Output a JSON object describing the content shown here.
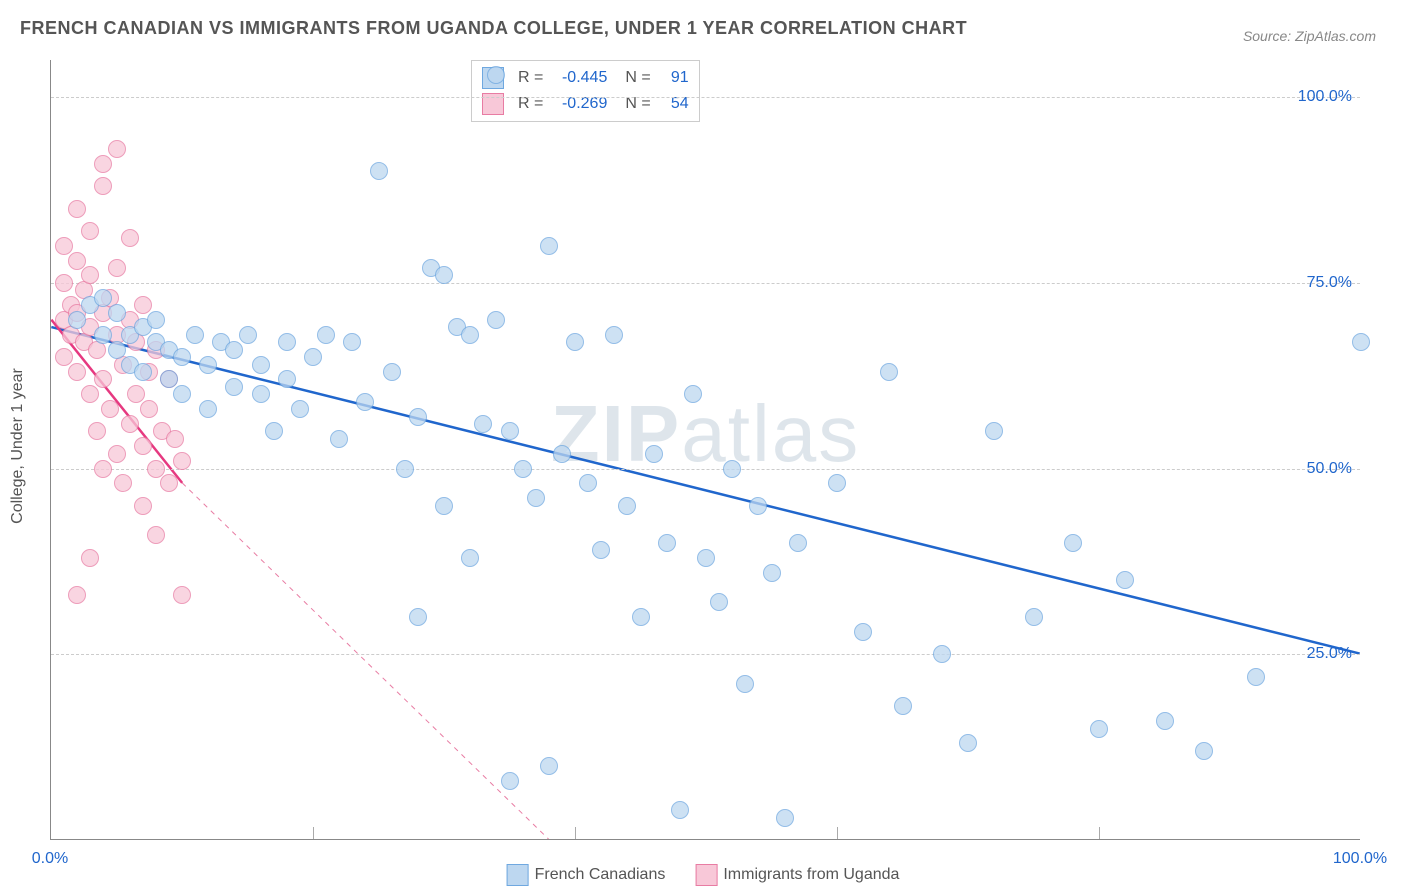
{
  "title": "FRENCH CANADIAN VS IMMIGRANTS FROM UGANDA COLLEGE, UNDER 1 YEAR CORRELATION CHART",
  "source_label": "Source:",
  "source_name": "ZipAtlas.com",
  "ylabel": "College, Under 1 year",
  "watermark_bold": "ZIP",
  "watermark_rest": "atlas",
  "chart": {
    "type": "scatter",
    "xlim": [
      0,
      100
    ],
    "ylim": [
      0,
      105
    ],
    "x_ticks": [
      0,
      100
    ],
    "x_tick_labels": [
      "0.0%",
      "100.0%"
    ],
    "x_minor_ticks": [
      20,
      40,
      60,
      80
    ],
    "y_ticks": [
      25,
      50,
      75,
      100
    ],
    "y_tick_labels": [
      "25.0%",
      "50.0%",
      "75.0%",
      "100.0%"
    ],
    "background_color": "#ffffff",
    "grid_color": "#cccccc",
    "axis_color": "#888888",
    "marker_radius": 9,
    "marker_stroke_width": 1.5,
    "series": [
      {
        "name": "French Canadians",
        "fill": "#bdd7f0",
        "stroke": "#6fa8e0",
        "line_color": "#2066cc",
        "line_width": 2.5,
        "R": "-0.445",
        "N": "91",
        "trend": {
          "x1": 0,
          "y1": 69,
          "x2": 100,
          "y2": 25
        },
        "points": [
          [
            2,
            70
          ],
          [
            3,
            72
          ],
          [
            4,
            68
          ],
          [
            4,
            73
          ],
          [
            5,
            66
          ],
          [
            5,
            71
          ],
          [
            6,
            64
          ],
          [
            6,
            68
          ],
          [
            7,
            63
          ],
          [
            7,
            69
          ],
          [
            8,
            67
          ],
          [
            8,
            70
          ],
          [
            9,
            62
          ],
          [
            9,
            66
          ],
          [
            10,
            65
          ],
          [
            10,
            60
          ],
          [
            11,
            68
          ],
          [
            12,
            64
          ],
          [
            12,
            58
          ],
          [
            13,
            67
          ],
          [
            14,
            61
          ],
          [
            14,
            66
          ],
          [
            15,
            68
          ],
          [
            16,
            60
          ],
          [
            16,
            64
          ],
          [
            17,
            55
          ],
          [
            18,
            67
          ],
          [
            18,
            62
          ],
          [
            19,
            58
          ],
          [
            20,
            65
          ],
          [
            21,
            68
          ],
          [
            22,
            54
          ],
          [
            23,
            67
          ],
          [
            24,
            59
          ],
          [
            25,
            90
          ],
          [
            26,
            63
          ],
          [
            27,
            50
          ],
          [
            28,
            57
          ],
          [
            28,
            30
          ],
          [
            29,
            77
          ],
          [
            30,
            76
          ],
          [
            30,
            45
          ],
          [
            31,
            69
          ],
          [
            32,
            68
          ],
          [
            32,
            38
          ],
          [
            33,
            56
          ],
          [
            34,
            103
          ],
          [
            34,
            70
          ],
          [
            35,
            55
          ],
          [
            35,
            8
          ],
          [
            36,
            50
          ],
          [
            37,
            46
          ],
          [
            38,
            10
          ],
          [
            38,
            80
          ],
          [
            39,
            52
          ],
          [
            40,
            67
          ],
          [
            41,
            48
          ],
          [
            42,
            39
          ],
          [
            43,
            68
          ],
          [
            44,
            45
          ],
          [
            45,
            30
          ],
          [
            46,
            52
          ],
          [
            47,
            40
          ],
          [
            48,
            4
          ],
          [
            49,
            60
          ],
          [
            50,
            38
          ],
          [
            51,
            32
          ],
          [
            52,
            50
          ],
          [
            53,
            21
          ],
          [
            54,
            45
          ],
          [
            55,
            36
          ],
          [
            56,
            3
          ],
          [
            57,
            40
          ],
          [
            60,
            48
          ],
          [
            62,
            28
          ],
          [
            64,
            63
          ],
          [
            65,
            18
          ],
          [
            68,
            25
          ],
          [
            70,
            13
          ],
          [
            72,
            55
          ],
          [
            75,
            30
          ],
          [
            78,
            40
          ],
          [
            80,
            15
          ],
          [
            82,
            35
          ],
          [
            85,
            16
          ],
          [
            88,
            12
          ],
          [
            92,
            22
          ],
          [
            100,
            67
          ]
        ]
      },
      {
        "name": "Immigrants from Uganda",
        "fill": "#f8c8d8",
        "stroke": "#e87ca3",
        "line_color": "#e63980",
        "line_width": 2.5,
        "R": "-0.269",
        "N": "54",
        "trend": {
          "x1": 0,
          "y1": 70,
          "x2": 10,
          "y2": 48
        },
        "trend_ext": {
          "x1": 10,
          "y1": 48,
          "x2": 38,
          "y2": 0
        },
        "points": [
          [
            1,
            70
          ],
          [
            1,
            75
          ],
          [
            1,
            80
          ],
          [
            1,
            65
          ],
          [
            1.5,
            72
          ],
          [
            1.5,
            68
          ],
          [
            2,
            71
          ],
          [
            2,
            78
          ],
          [
            2,
            63
          ],
          [
            2,
            85
          ],
          [
            2.5,
            67
          ],
          [
            2.5,
            74
          ],
          [
            3,
            69
          ],
          [
            3,
            60
          ],
          [
            3,
            76
          ],
          [
            3,
            82
          ],
          [
            3.5,
            66
          ],
          [
            3.5,
            55
          ],
          [
            4,
            71
          ],
          [
            4,
            62
          ],
          [
            4,
            91
          ],
          [
            4,
            50
          ],
          [
            4.5,
            73
          ],
          [
            4.5,
            58
          ],
          [
            5,
            68
          ],
          [
            5,
            93
          ],
          [
            5,
            52
          ],
          [
            5,
            77
          ],
          [
            5.5,
            64
          ],
          [
            5.5,
            48
          ],
          [
            6,
            70
          ],
          [
            6,
            81
          ],
          [
            6,
            56
          ],
          [
            6.5,
            60
          ],
          [
            6.5,
            67
          ],
          [
            7,
            53
          ],
          [
            7,
            72
          ],
          [
            7,
            45
          ],
          [
            7.5,
            63
          ],
          [
            7.5,
            58
          ],
          [
            8,
            66
          ],
          [
            8,
            50
          ],
          [
            8,
            41
          ],
          [
            8.5,
            55
          ],
          [
            9,
            62
          ],
          [
            9,
            48
          ],
          [
            9.5,
            54
          ],
          [
            10,
            51
          ],
          [
            2,
            33
          ],
          [
            3,
            38
          ],
          [
            10,
            33
          ],
          [
            4,
            88
          ]
        ]
      }
    ],
    "legend_labels": [
      "French Canadians",
      "Immigrants from Uganda"
    ]
  }
}
